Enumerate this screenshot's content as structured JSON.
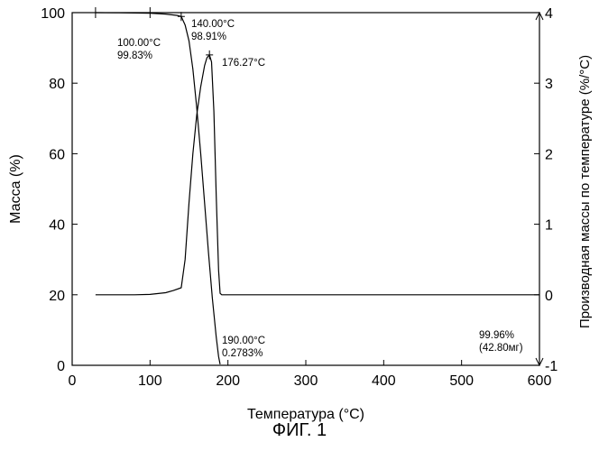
{
  "chart_data": {
    "type": "line",
    "caption": "ФИГ. 1",
    "xlabel": "Температура (°C)",
    "ylabel_left": "Масса (%)",
    "ylabel_right": "Производная массы по температуре (%/°C)",
    "xlim": [
      0,
      600
    ],
    "ylim_left": [
      0,
      100
    ],
    "ylim_right": [
      -1,
      4
    ],
    "xticks": [
      0,
      100,
      200,
      300,
      400,
      500,
      600
    ],
    "yticks_left": [
      0,
      20,
      40,
      60,
      80,
      100
    ],
    "yticks_right": [
      -1,
      0,
      1,
      2,
      3,
      4
    ],
    "series": [
      {
        "name": "mass",
        "axis": "left",
        "x": [
          30,
          60,
          100,
          120,
          135,
          140,
          145,
          150,
          155,
          160,
          165,
          170,
          175,
          180,
          185,
          188,
          190
        ],
        "y": [
          100.0,
          99.95,
          99.83,
          99.6,
          99.2,
          98.91,
          96.5,
          92.0,
          84.0,
          73.0,
          60.0,
          46.0,
          32.0,
          19.0,
          8.0,
          2.5,
          0.28
        ]
      },
      {
        "name": "derivative",
        "axis": "right",
        "x": [
          30,
          80,
          100,
          120,
          130,
          140,
          145,
          150,
          155,
          160,
          165,
          170,
          173,
          176.27,
          179,
          182,
          185,
          188,
          190,
          192,
          195,
          250,
          300,
          400,
          500,
          600
        ],
        "y": [
          0.0,
          0.0,
          0.005,
          0.03,
          0.06,
          0.1,
          0.5,
          1.3,
          2.0,
          2.55,
          2.95,
          3.25,
          3.36,
          3.4,
          3.3,
          2.6,
          1.4,
          0.35,
          0.02,
          0.0,
          0.0,
          0.0,
          0.0,
          0.0,
          0.0,
          0.0
        ]
      }
    ],
    "annotations": [
      {
        "lines": [
          "100.00°C",
          "99.83%"
        ],
        "x": 100,
        "y": 99.83,
        "axis": "left"
      },
      {
        "lines": [
          "140.00°C",
          "98.91%"
        ],
        "x": 140,
        "y": 98.91,
        "axis": "left"
      },
      {
        "lines": [
          "176.27°C"
        ],
        "x": 176.27,
        "y": 3.4,
        "axis": "right"
      },
      {
        "lines": [
          "190.00°C",
          "0.2783%"
        ],
        "x": 190,
        "y": 0.28,
        "axis": "left"
      },
      {
        "lines": [
          "99.96%",
          "(42.80мг)"
        ],
        "x": 600,
        "y": 0.04,
        "axis": "left"
      }
    ],
    "grid": false,
    "colors": {
      "line": "#000000",
      "background": "#ffffff"
    }
  }
}
